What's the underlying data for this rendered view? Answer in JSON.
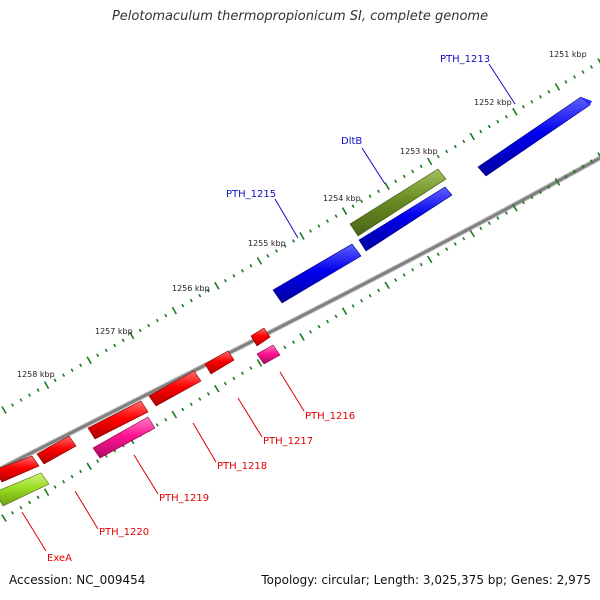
{
  "title": "Pelotomaculum thermopropionicum SI, complete genome",
  "footer": {
    "accession": "Accession: NC_009454",
    "summary": "Topology: circular; Length: 3,025,375 bp; Genes: 2,975"
  },
  "colors": {
    "backbone": "#888888",
    "tick": "#1e7a1e",
    "label_forward": "#1010c0",
    "label_reverse": "#e00000",
    "gene_blue": "#0000ee",
    "gene_olive": "#6b8e23",
    "gene_red": "#ff0000",
    "gene_pink": "#ff1493",
    "gene_lime": "#99dd22"
  },
  "scale": {
    "unit": "kbp",
    "labels": [
      "1251 kbp",
      "1252 kbp",
      "1253 kbp",
      "1254 kbp",
      "1255 kbp",
      "1256 kbp",
      "1257 kbp",
      "1258 kbp"
    ]
  },
  "genes": [
    {
      "name": "PTH_1213",
      "strand": "forward",
      "color": "blue"
    },
    {
      "name": "DltB",
      "strand": "forward",
      "color": "olive"
    },
    {
      "name": "PTH_1215",
      "strand": "forward",
      "color": "blue"
    },
    {
      "name": "PTH_1216",
      "strand": "reverse",
      "color": "pink"
    },
    {
      "name": "PTH_1217",
      "strand": "reverse",
      "color": "red"
    },
    {
      "name": "PTH_1218",
      "strand": "reverse",
      "color": "red"
    },
    {
      "name": "PTH_1219",
      "strand": "reverse",
      "color": "pink"
    },
    {
      "name": "PTH_1220",
      "strand": "reverse",
      "color": "red"
    },
    {
      "name": "ExeA",
      "strand": "reverse",
      "color": "lime"
    }
  ]
}
